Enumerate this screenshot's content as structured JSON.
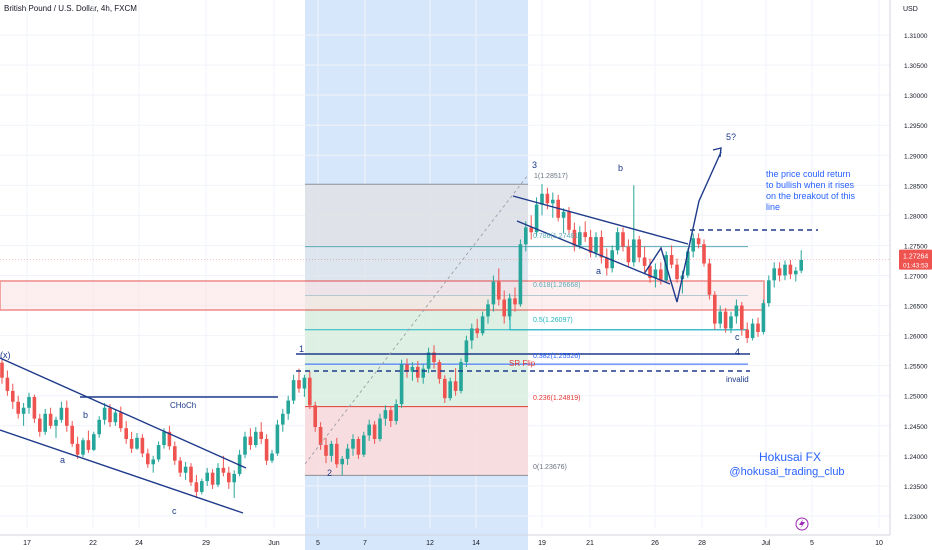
{
  "header": {
    "title": "British Pound / U.S. Dollar, 4h, FXCM",
    "currency": "USD"
  },
  "chart_data": {
    "type": "candlestick",
    "symbol": "British Pound / U.S. Dollar",
    "timeframe": "4h",
    "source": "FXCM",
    "ylim": [
      1.228,
      1.3125
    ],
    "y_ticks": [
      "1.31000",
      "1.30500",
      "1.30000",
      "1.29500",
      "1.29000",
      "1.28500",
      "1.28000",
      "1.27500",
      "1.27000",
      "1.26500",
      "1.26000",
      "1.25500",
      "1.25000",
      "1.24500",
      "1.24000",
      "1.23500",
      "1.23000"
    ],
    "x_ticks": [
      "17",
      "22",
      "24",
      "29",
      "Jun",
      "5",
      "7",
      "12",
      "14",
      "19",
      "21",
      "26",
      "28",
      "Jul",
      "5",
      "10"
    ],
    "last_price": "1.27264",
    "countdown": "01:43:53",
    "colors": {
      "up": "#26a69a",
      "down": "#ef5350",
      "wave": "#1e3a8a",
      "note": "#2962ff",
      "fib": "#5aa9b8",
      "box": "#e53935"
    },
    "fib_levels": [
      {
        "ratio": "1",
        "label": "1(1.28517)",
        "price": 1.28517
      },
      {
        "ratio": "0.786",
        "label": "0.786(1.27481)",
        "price": 1.27481
      },
      {
        "ratio": "0.618",
        "label": "0.618(1.26668)",
        "price": 1.26668
      },
      {
        "ratio": "0.5",
        "label": "0.5(1.26097)",
        "price": 1.26097
      },
      {
        "ratio": "0.382",
        "label": "0.382(1.25526)",
        "price": 1.25526
      },
      {
        "ratio": "0.236",
        "label": "0.236(1.24819)",
        "price": 1.24819
      },
      {
        "ratio": "0",
        "label": "0(1.23676)",
        "price": 1.23676
      }
    ],
    "annotations": {
      "wave_labels": [
        "(x)",
        "a",
        "b",
        "c",
        "1",
        "2",
        "3",
        "a",
        "b",
        "c",
        "4",
        "5?"
      ],
      "choch": "CHoCh",
      "sr_flip": "SR Flip",
      "invalid": "invalid",
      "note": [
        "the price could return",
        "to bullish when it rises",
        "on the breakout of this",
        "line"
      ],
      "brand": [
        "Hokusai FX",
        "@hokusai_trading_club"
      ]
    },
    "candles": [
      [
        1.2555,
        1.256,
        1.252,
        1.253
      ],
      [
        1.253,
        1.2542,
        1.25,
        1.2508
      ],
      [
        1.2508,
        1.252,
        1.2478,
        1.249
      ],
      [
        1.249,
        1.25,
        1.2462,
        1.247
      ],
      [
        1.247,
        1.2488,
        1.245,
        1.248
      ],
      [
        1.248,
        1.2505,
        1.247,
        1.2498
      ],
      [
        1.2498,
        1.2502,
        1.2455,
        1.2462
      ],
      [
        1.2462,
        1.247,
        1.2432,
        1.244
      ],
      [
        1.244,
        1.2478,
        1.2435,
        1.247
      ],
      [
        1.247,
        1.248,
        1.2445,
        1.245
      ],
      [
        1.245,
        1.2465,
        1.243,
        1.246
      ],
      [
        1.246,
        1.249,
        1.2455,
        1.248
      ],
      [
        1.248,
        1.2492,
        1.244,
        1.245
      ],
      [
        1.245,
        1.2458,
        1.2415,
        1.242
      ],
      [
        1.242,
        1.2432,
        1.2395,
        1.2402
      ],
      [
        1.2402,
        1.243,
        1.2398,
        1.2426
      ],
      [
        1.2426,
        1.2442,
        1.2405,
        1.241
      ],
      [
        1.241,
        1.244,
        1.2408,
        1.2436
      ],
      [
        1.2436,
        1.2466,
        1.243,
        1.246
      ],
      [
        1.246,
        1.2488,
        1.2452,
        1.248
      ],
      [
        1.248,
        1.2486,
        1.2448,
        1.2456
      ],
      [
        1.2456,
        1.2478,
        1.245,
        1.2472
      ],
      [
        1.2472,
        1.2482,
        1.244,
        1.2446
      ],
      [
        1.2446,
        1.2458,
        1.242,
        1.2428
      ],
      [
        1.2428,
        1.244,
        1.2405,
        1.2412
      ],
      [
        1.2412,
        1.2438,
        1.241,
        1.243
      ],
      [
        1.243,
        1.2436,
        1.2398,
        1.2404
      ],
      [
        1.2404,
        1.2412,
        1.238,
        1.2386
      ],
      [
        1.2386,
        1.24,
        1.2372,
        1.2394
      ],
      [
        1.2394,
        1.2424,
        1.239,
        1.2418
      ],
      [
        1.2418,
        1.2446,
        1.2412,
        1.244
      ],
      [
        1.244,
        1.245,
        1.241,
        1.2416
      ],
      [
        1.2416,
        1.2424,
        1.2385,
        1.2392
      ],
      [
        1.2392,
        1.2398,
        1.2365,
        1.2372
      ],
      [
        1.2372,
        1.239,
        1.236,
        1.2382
      ],
      [
        1.2382,
        1.2388,
        1.235,
        1.2356
      ],
      [
        1.2356,
        1.2368,
        1.233,
        1.234
      ],
      [
        1.234,
        1.2362,
        1.2336,
        1.2358
      ],
      [
        1.2358,
        1.238,
        1.235,
        1.2372
      ],
      [
        1.2372,
        1.2378,
        1.2345,
        1.2352
      ],
      [
        1.2352,
        1.2388,
        1.2348,
        1.238
      ],
      [
        1.238,
        1.24,
        1.2366,
        1.2372
      ],
      [
        1.2372,
        1.2382,
        1.2345,
        1.2356
      ],
      [
        1.2356,
        1.2376,
        1.233,
        1.237
      ],
      [
        1.237,
        1.241,
        1.2366,
        1.2402
      ],
      [
        1.2402,
        1.244,
        1.2396,
        1.2432
      ],
      [
        1.2432,
        1.2446,
        1.241,
        1.2418
      ],
      [
        1.2418,
        1.2448,
        1.2414,
        1.244
      ],
      [
        1.244,
        1.2456,
        1.242,
        1.2428
      ],
      [
        1.2428,
        1.2436,
        1.2385,
        1.2392
      ],
      [
        1.2392,
        1.241,
        1.2388,
        1.2404
      ],
      [
        1.2404,
        1.246,
        1.24,
        1.2452
      ],
      [
        1.2452,
        1.2478,
        1.244,
        1.247
      ],
      [
        1.247,
        1.25,
        1.246,
        1.2492
      ],
      [
        1.2492,
        1.2535,
        1.2486,
        1.2526
      ],
      [
        1.2526,
        1.2545,
        1.2505,
        1.2512
      ],
      [
        1.2512,
        1.2535,
        1.2498,
        1.253
      ],
      [
        1.253,
        1.254,
        1.2478,
        1.2484
      ],
      [
        1.2484,
        1.249,
        1.244,
        1.2448
      ],
      [
        1.2448,
        1.2456,
        1.241,
        1.2418
      ],
      [
        1.2418,
        1.243,
        1.2388,
        1.24
      ],
      [
        1.24,
        1.2425,
        1.239,
        1.242
      ],
      [
        1.242,
        1.243,
        1.238,
        1.2386
      ],
      [
        1.2386,
        1.24,
        1.2368,
        1.2395
      ],
      [
        1.2395,
        1.242,
        1.2385,
        1.2412
      ],
      [
        1.2412,
        1.2436,
        1.24,
        1.2428
      ],
      [
        1.2428,
        1.2432,
        1.2395,
        1.2402
      ],
      [
        1.2402,
        1.244,
        1.2398,
        1.2434
      ],
      [
        1.2434,
        1.246,
        1.2425,
        1.2452
      ],
      [
        1.2452,
        1.2458,
        1.242,
        1.2428
      ],
      [
        1.2428,
        1.247,
        1.2424,
        1.2462
      ],
      [
        1.2462,
        1.2484,
        1.245,
        1.2476
      ],
      [
        1.2476,
        1.2482,
        1.2448,
        1.2458
      ],
      [
        1.2458,
        1.2494,
        1.2452,
        1.2486
      ],
      [
        1.2486,
        1.256,
        1.248,
        1.2552
      ],
      [
        1.2552,
        1.2562,
        1.253,
        1.254
      ],
      [
        1.254,
        1.2556,
        1.2525,
        1.2548
      ],
      [
        1.2548,
        1.2558,
        1.2522,
        1.253
      ],
      [
        1.253,
        1.2552,
        1.252,
        1.2545
      ],
      [
        1.2545,
        1.258,
        1.2538,
        1.2572
      ],
      [
        1.2572,
        1.2584,
        1.2545,
        1.2556
      ],
      [
        1.2556,
        1.256,
        1.252,
        1.2528
      ],
      [
        1.2528,
        1.2534,
        1.2488,
        1.2496
      ],
      [
        1.2496,
        1.253,
        1.2492,
        1.2524
      ],
      [
        1.2524,
        1.2546,
        1.25,
        1.2508
      ],
      [
        1.2508,
        1.2562,
        1.2504,
        1.2556
      ],
      [
        1.2556,
        1.26,
        1.2548,
        1.2592
      ],
      [
        1.2592,
        1.262,
        1.2578,
        1.2612
      ],
      [
        1.2612,
        1.2628,
        1.2596,
        1.2604
      ],
      [
        1.2604,
        1.264,
        1.26,
        1.2632
      ],
      [
        1.2632,
        1.266,
        1.262,
        1.2652
      ],
      [
        1.2652,
        1.27,
        1.264,
        1.269
      ],
      [
        1.269,
        1.2712,
        1.265,
        1.266
      ],
      [
        1.266,
        1.2675,
        1.262,
        1.2632
      ],
      [
        1.2632,
        1.267,
        1.2626,
        1.2662
      ],
      [
        1.2662,
        1.268,
        1.264,
        1.2652
      ],
      [
        1.2652,
        1.276,
        1.2648,
        1.2752
      ],
      [
        1.2752,
        1.279,
        1.274,
        1.278
      ],
      [
        1.278,
        1.28,
        1.276,
        1.2772
      ],
      [
        1.2772,
        1.283,
        1.2765,
        1.2818
      ],
      [
        1.2818,
        1.2852,
        1.28,
        1.2836
      ],
      [
        1.2836,
        1.2846,
        1.281,
        1.282
      ],
      [
        1.282,
        1.2838,
        1.2796,
        1.2826
      ],
      [
        1.2826,
        1.2834,
        1.279,
        1.2796
      ],
      [
        1.2796,
        1.2812,
        1.277,
        1.2806
      ],
      [
        1.2806,
        1.2814,
        1.2768,
        1.2776
      ],
      [
        1.2776,
        1.2788,
        1.274,
        1.275
      ],
      [
        1.275,
        1.2782,
        1.2744,
        1.2772
      ],
      [
        1.2772,
        1.279,
        1.2756,
        1.2764
      ],
      [
        1.2764,
        1.2776,
        1.273,
        1.2738
      ],
      [
        1.2738,
        1.2772,
        1.273,
        1.2764
      ],
      [
        1.2764,
        1.2775,
        1.272,
        1.273
      ],
      [
        1.273,
        1.2745,
        1.27,
        1.2712
      ],
      [
        1.2712,
        1.275,
        1.2705,
        1.2742
      ],
      [
        1.2742,
        1.278,
        1.2735,
        1.2772
      ],
      [
        1.2772,
        1.278,
        1.274,
        1.2748
      ],
      [
        1.2748,
        1.276,
        1.2715,
        1.2722
      ],
      [
        1.2722,
        1.285,
        1.2715,
        1.276
      ],
      [
        1.276,
        1.2766,
        1.2722,
        1.273
      ],
      [
        1.273,
        1.2748,
        1.2706,
        1.2716
      ],
      [
        1.2716,
        1.2728,
        1.2688,
        1.2696
      ],
      [
        1.2696,
        1.272,
        1.268,
        1.271
      ],
      [
        1.271,
        1.2722,
        1.2685,
        1.2692
      ],
      [
        1.2692,
        1.274,
        1.2688,
        1.2734
      ],
      [
        1.2734,
        1.275,
        1.2712,
        1.2718
      ],
      [
        1.2718,
        1.2728,
        1.2688,
        1.2694
      ],
      [
        1.2694,
        1.2708,
        1.267,
        1.27
      ],
      [
        1.27,
        1.2745,
        1.2696,
        1.274
      ],
      [
        1.274,
        1.277,
        1.273,
        1.2762
      ],
      [
        1.2762,
        1.277,
        1.2745,
        1.2752
      ],
      [
        1.2752,
        1.276,
        1.2715,
        1.272
      ],
      [
        1.272,
        1.2728,
        1.266,
        1.2668
      ],
      [
        1.2668,
        1.2674,
        1.261,
        1.262
      ],
      [
        1.262,
        1.265,
        1.2612,
        1.264
      ],
      [
        1.264,
        1.2646,
        1.2605,
        1.2612
      ],
      [
        1.2612,
        1.264,
        1.2604,
        1.2632
      ],
      [
        1.2632,
        1.266,
        1.262,
        1.265
      ],
      [
        1.265,
        1.2656,
        1.26,
        1.261
      ],
      [
        1.261,
        1.2622,
        1.2588,
        1.2596
      ],
      [
        1.2596,
        1.2628,
        1.2592,
        1.262
      ],
      [
        1.262,
        1.263,
        1.2598,
        1.2606
      ],
      [
        1.2606,
        1.266,
        1.2602,
        1.2654
      ],
      [
        1.2654,
        1.27,
        1.2648,
        1.2692
      ],
      [
        1.2692,
        1.2722,
        1.268,
        1.2712
      ],
      [
        1.2712,
        1.2722,
        1.269,
        1.27
      ],
      [
        1.27,
        1.2725,
        1.2692,
        1.2718
      ],
      [
        1.2718,
        1.2726,
        1.2694,
        1.2702
      ],
      [
        1.2702,
        1.2714,
        1.269,
        1.2708
      ],
      [
        1.2708,
        1.2742,
        1.2704,
        1.2726
      ]
    ]
  }
}
